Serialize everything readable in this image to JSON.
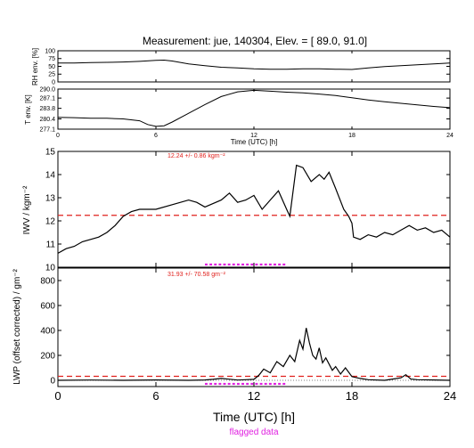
{
  "figure": {
    "title": "Measurement: jue, 140304, Elev. = [ 89.0,  91.0]",
    "flag_legend": "flagged data"
  },
  "colors": {
    "line": "#000000",
    "mean": "#e0201c",
    "flag": "#e020e0",
    "stats": "#e0201c"
  },
  "chart_data": [
    {
      "id": "rh",
      "type": "line",
      "ylabel": "RH env. [%]",
      "ylim": [
        0,
        100
      ],
      "yticks": [
        0,
        25,
        50,
        75,
        100
      ],
      "xlim": [
        0,
        24
      ],
      "x": [
        0,
        1,
        2,
        3,
        4,
        5,
        6,
        6.5,
        7,
        8,
        9,
        10,
        11,
        12,
        13,
        14,
        15,
        16,
        17,
        18,
        19,
        20,
        21,
        22,
        23,
        24
      ],
      "values": [
        61,
        61,
        62,
        63,
        64,
        66,
        69,
        70,
        67,
        58,
        52,
        47,
        45,
        42,
        41,
        41,
        42,
        42,
        41,
        40,
        45,
        49,
        52,
        55,
        58,
        61
      ]
    },
    {
      "id": "temp",
      "type": "line",
      "ylabel": "T env. [K]",
      "ylim": [
        277.1,
        290.0
      ],
      "yticks": [
        277.1,
        280.4,
        283.8,
        287.1,
        290.0
      ],
      "ytick_labels": [
        "277.1",
        "280.4",
        "283.8",
        "287.1",
        "290.0"
      ],
      "xlim": [
        0,
        24
      ],
      "xticks": [
        0,
        6,
        12,
        18,
        24
      ],
      "xlabel": "Time (UTC) [h]",
      "x": [
        0,
        1,
        2,
        3,
        4,
        5,
        5.5,
        6,
        6.5,
        7,
        8,
        9,
        10,
        11,
        12,
        13,
        14,
        15,
        16,
        17,
        18,
        19,
        20,
        21,
        22,
        23,
        24
      ],
      "values": [
        280.9,
        280.8,
        280.6,
        280.6,
        280.4,
        279.8,
        278.6,
        278.0,
        278.2,
        279.4,
        282.2,
        285.0,
        287.6,
        289.1,
        289.6,
        289.3,
        289.0,
        288.8,
        288.4,
        287.9,
        287.2,
        286.5,
        285.9,
        285.4,
        284.9,
        284.4,
        284.0
      ]
    },
    {
      "id": "iwv",
      "type": "line",
      "ylabel": "IWV / kgm⁻²",
      "ylim": [
        10,
        15
      ],
      "yticks": [
        10,
        11,
        12,
        13,
        14,
        15
      ],
      "xlim": [
        0,
        24
      ],
      "mean": 12.24,
      "stats": "12.24 +/-   0.86 kgm⁻²",
      "x": [
        0,
        0.5,
        1,
        1.5,
        2,
        2.5,
        3,
        3.5,
        4,
        4.5,
        5,
        6,
        7,
        8,
        8.5,
        9,
        10,
        10.5,
        11,
        11.5,
        12,
        12.5,
        13,
        13.5,
        14,
        14.2,
        14.6,
        15,
        15.5,
        16,
        16.3,
        16.6,
        17,
        17.5,
        17.8,
        18,
        18.1,
        18.5,
        19,
        19.5,
        20,
        20.5,
        21,
        21.5,
        22,
        22.5,
        23,
        23.5,
        24
      ],
      "values": [
        10.6,
        10.8,
        10.9,
        11.1,
        11.2,
        11.3,
        11.5,
        11.8,
        12.2,
        12.4,
        12.5,
        12.5,
        12.7,
        12.9,
        12.8,
        12.6,
        12.9,
        13.2,
        12.8,
        12.9,
        13.1,
        12.5,
        12.9,
        13.3,
        12.5,
        12.2,
        14.4,
        14.3,
        13.7,
        14.0,
        13.8,
        14.1,
        13.4,
        12.5,
        12.2,
        11.9,
        11.3,
        11.2,
        11.4,
        11.3,
        11.5,
        11.4,
        11.6,
        11.8,
        11.6,
        11.7,
        11.5,
        11.6,
        11.3
      ]
    },
    {
      "id": "lwp",
      "type": "line",
      "ylabel": "LWP (offset corrected) / gm⁻²",
      "ylim": [
        -50,
        900
      ],
      "yticks": [
        0,
        200,
        400,
        600,
        800
      ],
      "xlim": [
        0,
        24
      ],
      "xticks": [
        0,
        6,
        12,
        18,
        24
      ],
      "xlabel": "Time (UTC) [h]",
      "mean": 31.93,
      "stats": "31.93 +/-  70.58 gm⁻²",
      "x": [
        0,
        2,
        4,
        6,
        8,
        9,
        9.5,
        10,
        11,
        11.5,
        12,
        12.3,
        12.6,
        13,
        13.4,
        13.8,
        14.2,
        14.5,
        14.8,
        15,
        15.2,
        15.4,
        15.6,
        15.8,
        16,
        16.2,
        16.4,
        16.8,
        17,
        17.3,
        17.6,
        18,
        18.5,
        19,
        20,
        20.5,
        21,
        21.3,
        21.6,
        22,
        23,
        24
      ],
      "values": [
        0,
        2,
        0,
        3,
        0,
        3,
        8,
        15,
        2,
        5,
        8,
        40,
        90,
        60,
        150,
        110,
        200,
        150,
        320,
        250,
        420,
        300,
        200,
        170,
        260,
        140,
        180,
        80,
        110,
        50,
        100,
        30,
        15,
        5,
        0,
        10,
        20,
        45,
        10,
        5,
        3,
        0
      ]
    }
  ],
  "flags": {
    "iwv_segments": [
      [
        9.0,
        14.0
      ]
    ],
    "lwp_segments": [
      [
        9.0,
        14.0
      ]
    ]
  }
}
